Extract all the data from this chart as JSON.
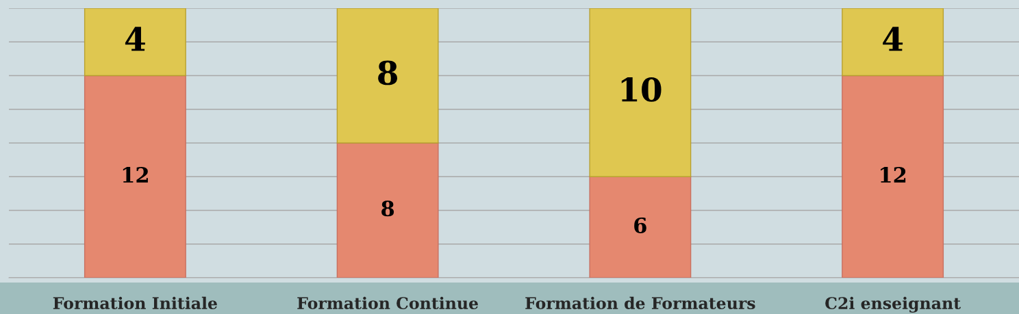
{
  "chart_data": {
    "type": "bar",
    "stacked": true,
    "categories": [
      "Formation Initiale",
      "Formation Continue",
      "Formation de Formateurs",
      "C2i enseignant"
    ],
    "series": [
      {
        "color": "#e5886f",
        "values": [
          12,
          8,
          6,
          12
        ]
      },
      {
        "color": "#dfc750",
        "values": [
          4,
          8,
          10,
          4
        ]
      }
    ],
    "ylim": [
      0,
      16
    ],
    "yticks": [
      {
        "value": 0,
        "label": null
      },
      {
        "value": 2,
        "label": null
      },
      {
        "value": 4,
        "label": null
      },
      {
        "value": 6,
        "label": null
      },
      {
        "value": 8,
        "label": null
      },
      {
        "value": 10,
        "label": null
      },
      {
        "value": 12,
        "label": null
      },
      {
        "value": 14,
        "label": null
      },
      {
        "value": 16,
        "label": null
      }
    ],
    "grid": "y",
    "data_labels": true
  }
}
